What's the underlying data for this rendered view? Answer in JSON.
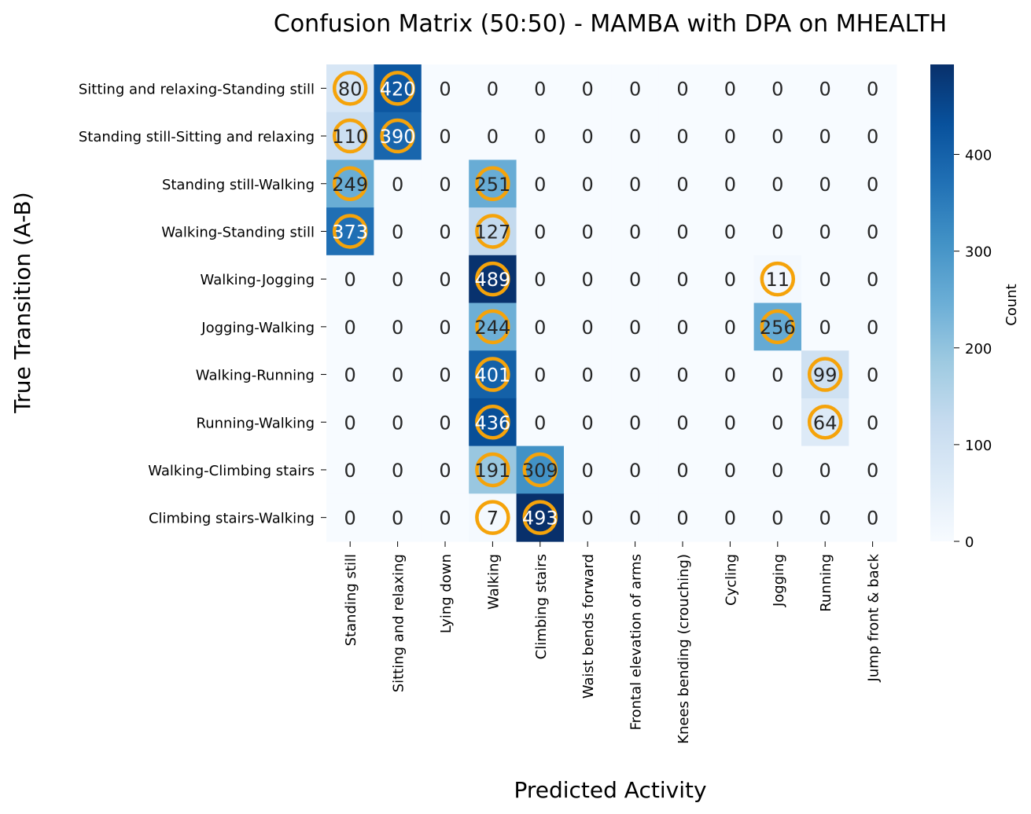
{
  "chart_data": {
    "type": "heatmap",
    "title": "Confusion Matrix (50:50) - MAMBA with DPA on MHEALTH",
    "xlabel": "Predicted Activity",
    "ylabel": "True Transition (A-B)",
    "x_categories": [
      "Standing still",
      "Sitting and relaxing",
      "Lying down",
      "Walking",
      "Climbing stairs",
      "Waist bends forward",
      "Frontal elevation of arms",
      "Knees bending (crouching)",
      "Cycling",
      "Jogging",
      "Running",
      "Jump front & back"
    ],
    "y_categories": [
      "Sitting and relaxing-Standing still",
      "Standing still-Sitting and relaxing",
      "Standing still-Walking",
      "Walking-Standing still",
      "Walking-Jogging",
      "Jogging-Walking",
      "Walking-Running",
      "Running-Walking",
      "Walking-Climbing stairs",
      "Climbing stairs-Walking"
    ],
    "values": [
      [
        80,
        420,
        0,
        0,
        0,
        0,
        0,
        0,
        0,
        0,
        0,
        0
      ],
      [
        110,
        390,
        0,
        0,
        0,
        0,
        0,
        0,
        0,
        0,
        0,
        0
      ],
      [
        249,
        0,
        0,
        251,
        0,
        0,
        0,
        0,
        0,
        0,
        0,
        0
      ],
      [
        373,
        0,
        0,
        127,
        0,
        0,
        0,
        0,
        0,
        0,
        0,
        0
      ],
      [
        0,
        0,
        0,
        489,
        0,
        0,
        0,
        0,
        0,
        11,
        0,
        0
      ],
      [
        0,
        0,
        0,
        244,
        0,
        0,
        0,
        0,
        0,
        256,
        0,
        0
      ],
      [
        0,
        0,
        0,
        401,
        0,
        0,
        0,
        0,
        0,
        0,
        99,
        0
      ],
      [
        0,
        0,
        0,
        436,
        0,
        0,
        0,
        0,
        0,
        0,
        64,
        0
      ],
      [
        0,
        0,
        0,
        191,
        309,
        0,
        0,
        0,
        0,
        0,
        0,
        0
      ],
      [
        0,
        0,
        0,
        7,
        493,
        0,
        0,
        0,
        0,
        0,
        0,
        0
      ]
    ],
    "highlighted_cells": [
      [
        0,
        0
      ],
      [
        0,
        1
      ],
      [
        1,
        0
      ],
      [
        1,
        1
      ],
      [
        2,
        0
      ],
      [
        2,
        3
      ],
      [
        3,
        0
      ],
      [
        3,
        3
      ],
      [
        4,
        3
      ],
      [
        4,
        9
      ],
      [
        5,
        3
      ],
      [
        5,
        9
      ],
      [
        6,
        3
      ],
      [
        6,
        10
      ],
      [
        7,
        3
      ],
      [
        7,
        10
      ],
      [
        8,
        3
      ],
      [
        8,
        4
      ],
      [
        9,
        3
      ],
      [
        9,
        4
      ]
    ],
    "colorbar": {
      "label": "Count",
      "range": [
        0,
        493
      ],
      "ticks": [
        0,
        100,
        200,
        300,
        400
      ],
      "colormap": "Blues"
    },
    "colors": {
      "highlight_ring": "#f5a30a",
      "text_dark": "#262626",
      "text_light": "#ffffff"
    }
  }
}
